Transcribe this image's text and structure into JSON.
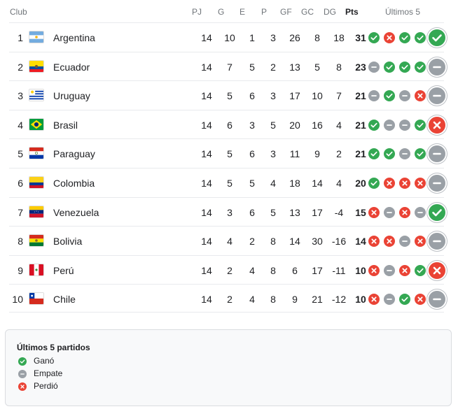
{
  "columns": {
    "club": "Club",
    "pj": "PJ",
    "g": "G",
    "e": "E",
    "p": "P",
    "gf": "GF",
    "gc": "GC",
    "dg": "DG",
    "pts": "Pts",
    "last5": "Últimos 5"
  },
  "colors": {
    "win": "#34a853",
    "draw": "#9aa0a6",
    "loss": "#ea4335"
  },
  "teams": [
    {
      "pos": "1",
      "name": "Argentina",
      "flag": "argentina-flag-icon",
      "pj": "14",
      "g": "10",
      "e": "1",
      "p": "3",
      "gf": "26",
      "gc": "8",
      "dg": "18",
      "pts": "31",
      "last5": [
        "win",
        "loss",
        "win",
        "win",
        "win"
      ]
    },
    {
      "pos": "2",
      "name": "Ecuador",
      "flag": "ecuador-flag-icon",
      "pj": "14",
      "g": "7",
      "e": "5",
      "p": "2",
      "gf": "13",
      "gc": "5",
      "dg": "8",
      "pts": "23",
      "last5": [
        "draw",
        "win",
        "win",
        "win",
        "draw"
      ]
    },
    {
      "pos": "3",
      "name": "Uruguay",
      "flag": "uruguay-flag-icon",
      "pj": "14",
      "g": "5",
      "e": "6",
      "p": "3",
      "gf": "17",
      "gc": "10",
      "dg": "7",
      "pts": "21",
      "last5": [
        "draw",
        "win",
        "draw",
        "loss",
        "draw"
      ]
    },
    {
      "pos": "4",
      "name": "Brasil",
      "flag": "brazil-flag-icon",
      "pj": "14",
      "g": "6",
      "e": "3",
      "p": "5",
      "gf": "20",
      "gc": "16",
      "dg": "4",
      "pts": "21",
      "last5": [
        "win",
        "draw",
        "draw",
        "win",
        "loss"
      ]
    },
    {
      "pos": "5",
      "name": "Paraguay",
      "flag": "paraguay-flag-icon",
      "pj": "14",
      "g": "5",
      "e": "6",
      "p": "3",
      "gf": "11",
      "gc": "9",
      "dg": "2",
      "pts": "21",
      "last5": [
        "win",
        "win",
        "draw",
        "win",
        "draw"
      ]
    },
    {
      "pos": "6",
      "name": "Colombia",
      "flag": "colombia-flag-icon",
      "pj": "14",
      "g": "5",
      "e": "5",
      "p": "4",
      "gf": "18",
      "gc": "14",
      "dg": "4",
      "pts": "20",
      "last5": [
        "win",
        "loss",
        "loss",
        "loss",
        "draw"
      ]
    },
    {
      "pos": "7",
      "name": "Venezuela",
      "flag": "venezuela-flag-icon",
      "pj": "14",
      "g": "3",
      "e": "6",
      "p": "5",
      "gf": "13",
      "gc": "17",
      "dg": "-4",
      "pts": "15",
      "last5": [
        "loss",
        "draw",
        "loss",
        "draw",
        "win"
      ]
    },
    {
      "pos": "8",
      "name": "Bolivia",
      "flag": "bolivia-flag-icon",
      "pj": "14",
      "g": "4",
      "e": "2",
      "p": "8",
      "gf": "14",
      "gc": "30",
      "dg": "-16",
      "pts": "14",
      "last5": [
        "loss",
        "loss",
        "draw",
        "loss",
        "draw"
      ]
    },
    {
      "pos": "9",
      "name": "Perú",
      "flag": "peru-flag-icon",
      "pj": "14",
      "g": "2",
      "e": "4",
      "p": "8",
      "gf": "6",
      "gc": "17",
      "dg": "-11",
      "pts": "10",
      "last5": [
        "loss",
        "draw",
        "loss",
        "win",
        "loss"
      ]
    },
    {
      "pos": "10",
      "name": "Chile",
      "flag": "chile-flag-icon",
      "pj": "14",
      "g": "2",
      "e": "4",
      "p": "8",
      "gf": "9",
      "gc": "21",
      "dg": "-12",
      "pts": "10",
      "last5": [
        "loss",
        "draw",
        "win",
        "loss",
        "draw"
      ]
    }
  ],
  "legend": {
    "title": "Últimos 5 partidos",
    "items": [
      {
        "type": "win",
        "label": "Ganó"
      },
      {
        "type": "draw",
        "label": "Empate"
      },
      {
        "type": "loss",
        "label": "Perdió"
      }
    ]
  }
}
